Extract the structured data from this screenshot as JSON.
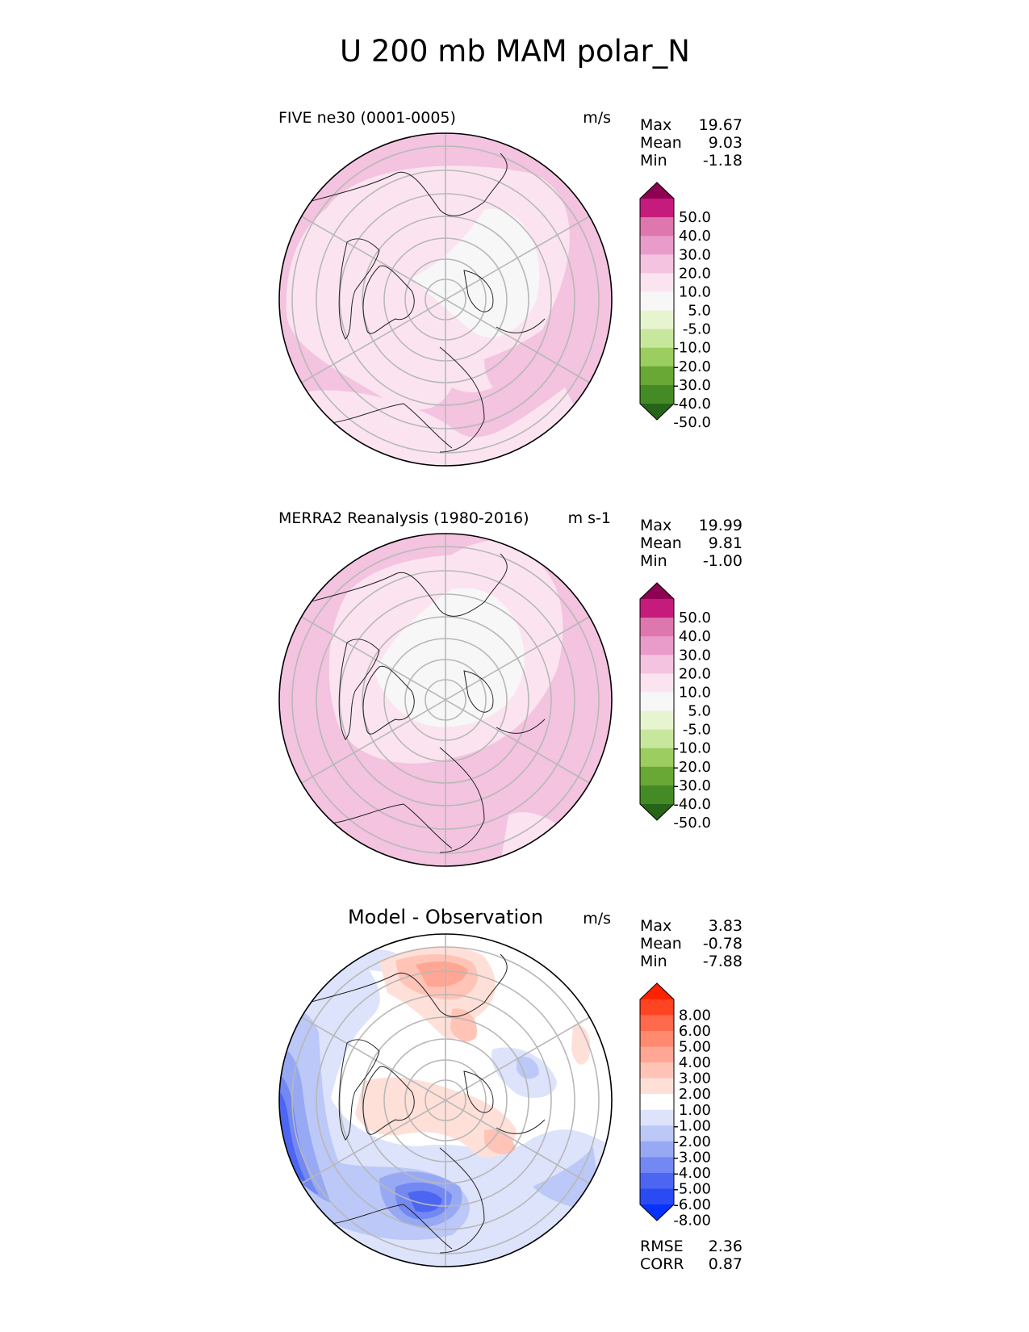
{
  "figure": {
    "title": "U 200 mb MAM polar_N"
  },
  "chart_data": [
    {
      "type": "heatmap",
      "projection": "north-polar-stereographic",
      "title": "FIVE ne30 (0001-0005)",
      "units": "m/s",
      "stats": [
        {
          "label": "Max",
          "value": "19.67"
        },
        {
          "label": "Mean",
          "value": "9.03"
        },
        {
          "label": "Min",
          "value": "-1.18"
        }
      ],
      "colorbar": {
        "levels": [
          "50.0",
          "40.0",
          "30.0",
          "20.0",
          "10.0",
          "5.0",
          "-5.0",
          "-10.0",
          "-20.0",
          "-30.0",
          "-40.0",
          "-50.0"
        ],
        "colors": [
          "#8e0152",
          "#c51b7d",
          "#de77ae",
          "#e99bc9",
          "#f3c3df",
          "#fbe4f0",
          "#f7f7f7",
          "#e6f5d0",
          "#c7e89c",
          "#9ccd60",
          "#6aa836",
          "#458b25",
          "#276419"
        ],
        "extend": "both"
      },
      "dominant_levels": [
        "10.0-20.0",
        "5.0-10.0",
        "-5.0-5.0"
      ]
    },
    {
      "type": "heatmap",
      "projection": "north-polar-stereographic",
      "title": "MERRA2 Reanalysis (1980-2016)",
      "units": "m s-1",
      "stats": [
        {
          "label": "Max",
          "value": "19.99"
        },
        {
          "label": "Mean",
          "value": "9.81"
        },
        {
          "label": "Min",
          "value": "-1.00"
        }
      ],
      "colorbar": {
        "levels": [
          "50.0",
          "40.0",
          "30.0",
          "20.0",
          "10.0",
          "5.0",
          "-5.0",
          "-10.0",
          "-20.0",
          "-30.0",
          "-40.0",
          "-50.0"
        ],
        "colors": [
          "#8e0152",
          "#c51b7d",
          "#de77ae",
          "#e99bc9",
          "#f3c3df",
          "#fbe4f0",
          "#f7f7f7",
          "#e6f5d0",
          "#c7e89c",
          "#9ccd60",
          "#6aa836",
          "#458b25",
          "#276419"
        ],
        "extend": "both"
      },
      "dominant_levels": [
        "10.0-20.0",
        "5.0-10.0",
        "-5.0-5.0"
      ]
    },
    {
      "type": "heatmap",
      "projection": "north-polar-stereographic",
      "title": "Model - Observation",
      "units": "m/s",
      "stats": [
        {
          "label": "Max",
          "value": "3.83"
        },
        {
          "label": "Mean",
          "value": "-0.78"
        },
        {
          "label": "Min",
          "value": "-7.88"
        }
      ],
      "colorbar": {
        "levels": [
          "8.00",
          "6.00",
          "5.00",
          "4.00",
          "3.00",
          "2.00",
          "1.00",
          "-1.00",
          "-2.00",
          "-3.00",
          "-4.00",
          "-5.00",
          "-6.00",
          "-8.00"
        ],
        "colors": [
          "#ff2200",
          "#ff4422",
          "#ff6a4c",
          "#ff8a70",
          "#ffa794",
          "#ffc4b6",
          "#ffe0d8",
          "#ffffff",
          "#dde3fb",
          "#bcc8f7",
          "#98a9f4",
          "#7388f2",
          "#4c66f2",
          "#2a4af4",
          "#0632ff"
        ],
        "extend": "both"
      },
      "metrics": [
        {
          "label": "RMSE",
          "value": "2.36"
        },
        {
          "label": "CORR",
          "value": "0.87"
        }
      ]
    }
  ]
}
